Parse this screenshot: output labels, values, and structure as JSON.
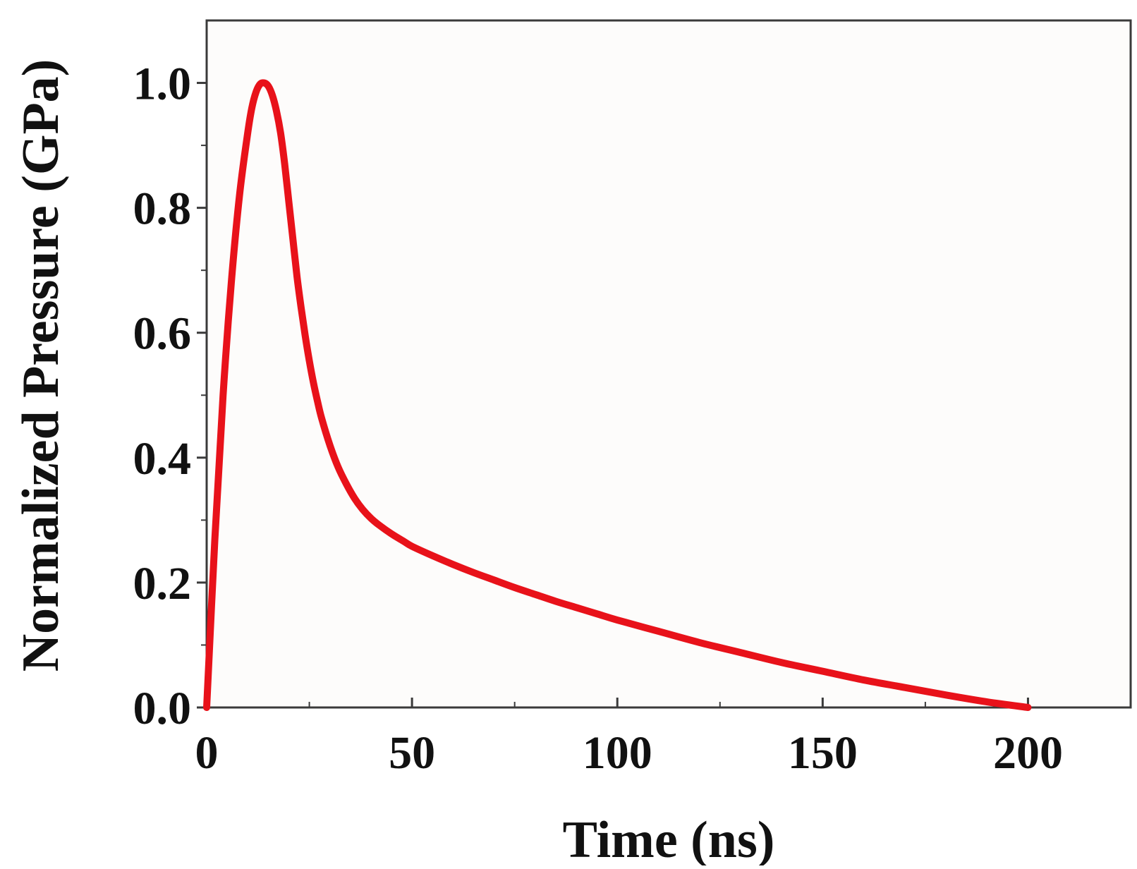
{
  "chart_data": {
    "type": "line",
    "title": "",
    "xlabel": "Time (ns)",
    "ylabel": "Normalized Pressure (GPa)",
    "xlim": [
      0,
      225
    ],
    "ylim": [
      0,
      1.1
    ],
    "x_ticks": [
      0,
      50,
      100,
      150,
      200
    ],
    "x_tick_labels": [
      "0",
      "50",
      "100",
      "150",
      "200"
    ],
    "x_minor_ticks": [
      25,
      75,
      125,
      175,
      225
    ],
    "y_ticks": [
      0.0,
      0.2,
      0.4,
      0.6,
      0.8,
      1.0
    ],
    "y_tick_labels": [
      "0.0",
      "0.2",
      "0.4",
      "0.6",
      "0.8",
      "1.0"
    ],
    "y_minor_ticks": [
      0.1,
      0.3,
      0.5,
      0.7,
      0.9
    ],
    "grid": false,
    "series": [
      {
        "color": "#e8121a",
        "x": [
          0,
          2,
          4,
          6,
          8,
          10,
          11,
          12,
          13,
          14,
          15,
          16,
          17,
          18,
          19,
          20,
          21,
          22,
          23,
          24,
          25,
          26,
          27,
          28,
          30,
          32,
          34,
          36,
          38,
          40,
          42,
          45,
          48,
          50,
          55,
          60,
          65,
          70,
          75,
          80,
          85,
          90,
          95,
          100,
          110,
          120,
          130,
          140,
          150,
          160,
          170,
          180,
          190,
          200
        ],
        "y": [
          0.0,
          0.27,
          0.5,
          0.68,
          0.82,
          0.92,
          0.96,
          0.985,
          0.998,
          1.0,
          0.995,
          0.98,
          0.955,
          0.92,
          0.87,
          0.81,
          0.75,
          0.69,
          0.64,
          0.595,
          0.555,
          0.52,
          0.49,
          0.463,
          0.42,
          0.385,
          0.358,
          0.335,
          0.317,
          0.303,
          0.292,
          0.278,
          0.266,
          0.258,
          0.243,
          0.229,
          0.216,
          0.204,
          0.192,
          0.181,
          0.17,
          0.16,
          0.15,
          0.14,
          0.122,
          0.104,
          0.088,
          0.072,
          0.058,
          0.044,
          0.032,
          0.02,
          0.009,
          0.0
        ]
      }
    ]
  }
}
